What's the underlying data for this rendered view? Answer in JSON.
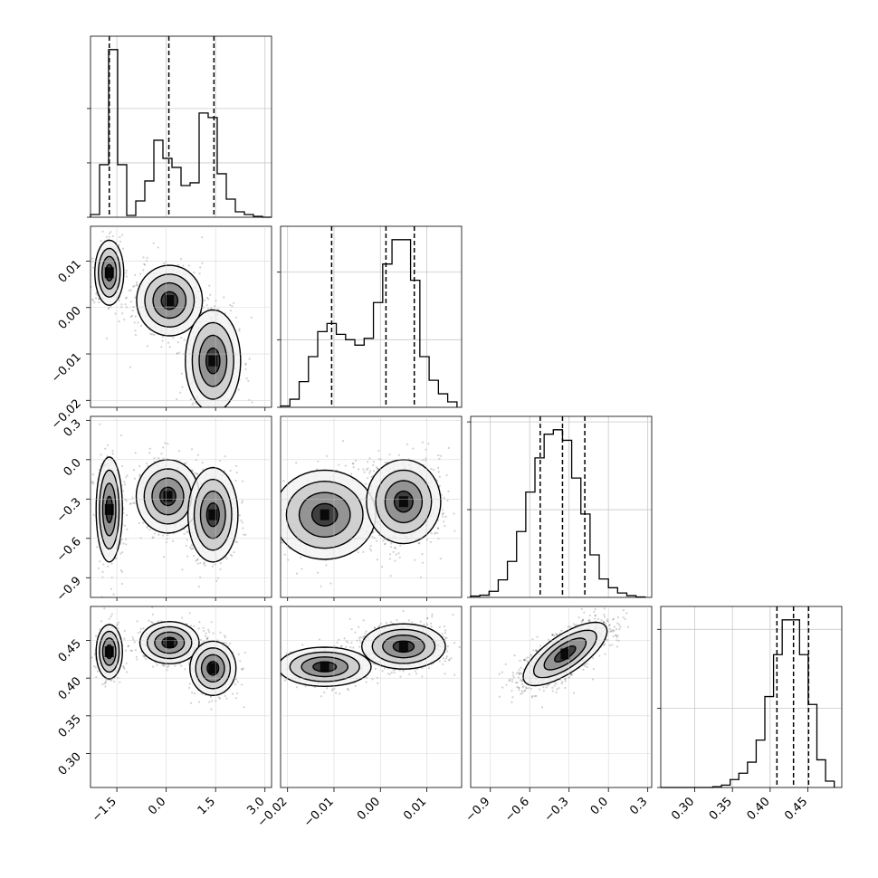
{
  "figure": {
    "type": "corner-plot"
  },
  "chart_data": {
    "type": "corner",
    "n_params": 4,
    "params": [
      {
        "range": [
          -2.3,
          3.2
        ],
        "ticks": [
          -1.5,
          0.0,
          1.5,
          3.0
        ],
        "tick_labels": [
          "−1.5",
          "0.0",
          "1.5",
          "3.0"
        ],
        "quantiles": [
          -1.73,
          0.08,
          1.45
        ],
        "hist": {
          "edges": [
            -2.3,
            -2.025,
            -1.75,
            -1.475,
            -1.2,
            -0.925,
            -0.65,
            -0.375,
            -0.1,
            0.175,
            0.45,
            0.725,
            1.0,
            1.275,
            1.55,
            1.825,
            2.1,
            2.375,
            2.65,
            2.925,
            3.2
          ],
          "counts": [
            3,
            58,
            185,
            58,
            2,
            18,
            40,
            85,
            65,
            55,
            35,
            38,
            115,
            110,
            48,
            20,
            6,
            3,
            1,
            0
          ],
          "y_ticks": [
            0,
            60,
            120
          ]
        }
      },
      {
        "range": [
          -0.0215,
          0.0175
        ],
        "ticks": [
          -0.02,
          -0.01,
          0.0,
          0.01
        ],
        "tick_labels": [
          "−0.02",
          "−0.01",
          "0.00",
          "0.01"
        ],
        "quantiles": [
          -0.0105,
          0.0012,
          0.0073
        ],
        "hist": {
          "edges": [
            -0.0215,
            -0.0195,
            -0.0175,
            -0.0155,
            -0.0135,
            -0.0115,
            -0.0095,
            -0.0075,
            -0.0055,
            -0.0035,
            -0.0015,
            0.0005,
            0.0025,
            0.0045,
            0.0065,
            0.0085,
            0.0105,
            0.0125,
            0.0145,
            0.0165
          ],
          "counts": [
            2,
            12,
            38,
            75,
            112,
            124,
            108,
            100,
            92,
            102,
            155,
            212,
            248,
            248,
            188,
            75,
            40,
            20,
            8
          ],
          "y_ticks": [
            0,
            100,
            200
          ]
        }
      },
      {
        "range": [
          -1.05,
          0.33
        ],
        "ticks": [
          -0.9,
          -0.6,
          -0.3,
          0.0,
          0.3
        ],
        "tick_labels": [
          "−0.9",
          "−0.6",
          "−0.3",
          "0.0",
          "0.3"
        ],
        "quantiles": [
          -0.52,
          -0.35,
          -0.18
        ],
        "hist": {
          "edges": [
            -1.05,
            -0.98,
            -0.91,
            -0.84,
            -0.77,
            -0.7,
            -0.63,
            -0.56,
            -0.49,
            -0.42,
            -0.35,
            -0.28,
            -0.21,
            -0.14,
            -0.07,
            0.0,
            0.07,
            0.14,
            0.21,
            0.28
          ],
          "counts": [
            3,
            5,
            14,
            40,
            82,
            150,
            240,
            318,
            372,
            382,
            358,
            272,
            190,
            97,
            42,
            22,
            10,
            4,
            1
          ],
          "y_ticks": [
            0,
            200,
            400
          ]
        }
      },
      {
        "range": [
          0.255,
          0.495
        ],
        "ticks": [
          0.3,
          0.35,
          0.4,
          0.45
        ],
        "tick_labels": [
          "0.30",
          "0.35",
          "0.40",
          "0.45"
        ],
        "quantiles": [
          0.409,
          0.431,
          0.451
        ],
        "hist": {
          "edges": [
            0.255,
            0.2665,
            0.278,
            0.2895,
            0.301,
            0.3125,
            0.324,
            0.3355,
            0.347,
            0.3585,
            0.37,
            0.3815,
            0.393,
            0.4045,
            0.416,
            0.4275,
            0.439,
            0.4505,
            0.462,
            0.4735,
            0.485
          ],
          "counts": [
            0,
            0,
            0,
            0,
            0,
            0,
            1,
            3,
            10,
            18,
            32,
            60,
            115,
            168,
            212,
            212,
            168,
            105,
            35,
            8
          ],
          "y_ticks": [
            0,
            100,
            200
          ]
        }
      }
    ],
    "panels_2d": [
      {
        "x": 0,
        "y": 1,
        "modes": [
          {
            "mx": -1.73,
            "my": 0.0075,
            "sx": 0.22,
            "sy": 0.0035,
            "rot": 0.0,
            "w": 0.28
          },
          {
            "mx": 0.1,
            "my": 0.0015,
            "sx": 0.5,
            "sy": 0.0038,
            "rot": -12.0,
            "w": 0.36
          },
          {
            "mx": 1.42,
            "my": -0.0115,
            "sx": 0.42,
            "sy": 0.0055,
            "rot": 50.0,
            "w": 0.36
          }
        ]
      },
      {
        "x": 0,
        "y": 2,
        "modes": [
          {
            "mx": -1.73,
            "my": -0.38,
            "sx": 0.2,
            "sy": 0.2,
            "rot": 0.0,
            "w": 0.28
          },
          {
            "mx": 0.05,
            "my": -0.28,
            "sx": 0.48,
            "sy": 0.14,
            "rot": 0.0,
            "w": 0.36
          },
          {
            "mx": 1.42,
            "my": -0.42,
            "sx": 0.38,
            "sy": 0.18,
            "rot": 0.0,
            "w": 0.36
          }
        ]
      },
      {
        "x": 1,
        "y": 2,
        "modes": [
          {
            "mx": -0.012,
            "my": -0.42,
            "sx": 0.0055,
            "sy": 0.17,
            "rot": 0.0,
            "w": 0.32
          },
          {
            "mx": 0.005,
            "my": -0.32,
            "sx": 0.004,
            "sy": 0.16,
            "rot": 0.0,
            "w": 0.68
          }
        ]
      },
      {
        "x": 0,
        "y": 3,
        "modes": [
          {
            "mx": -1.73,
            "my": 0.435,
            "sx": 0.2,
            "sy": 0.018,
            "rot": 0.0,
            "w": 0.28
          },
          {
            "mx": 0.1,
            "my": 0.447,
            "sx": 0.45,
            "sy": 0.014,
            "rot": 0.0,
            "w": 0.36
          },
          {
            "mx": 1.42,
            "my": 0.413,
            "sx": 0.35,
            "sy": 0.018,
            "rot": 0.0,
            "w": 0.36
          }
        ]
      },
      {
        "x": 1,
        "y": 3,
        "modes": [
          {
            "mx": -0.012,
            "my": 0.415,
            "sx": 0.005,
            "sy": 0.013,
            "rot": 0.0,
            "w": 0.32
          },
          {
            "mx": 0.005,
            "my": 0.442,
            "sx": 0.0045,
            "sy": 0.015,
            "rot": 0.0,
            "w": 0.68
          }
        ]
      },
      {
        "x": 2,
        "y": 3,
        "correlated": true,
        "mean": [
          -0.33,
          0.432
        ],
        "sx": 0.16,
        "sy": 0.021,
        "rho": 0.72
      }
    ],
    "contour_levels_sigma": [
      0.5,
      1.0,
      1.5,
      2.0
    ],
    "grid": true,
    "legend": "none"
  },
  "style": {
    "line_color": "#000000",
    "grid_color": "#c8c8c8",
    "hist_color": "#000000",
    "point_color": "#000000"
  }
}
